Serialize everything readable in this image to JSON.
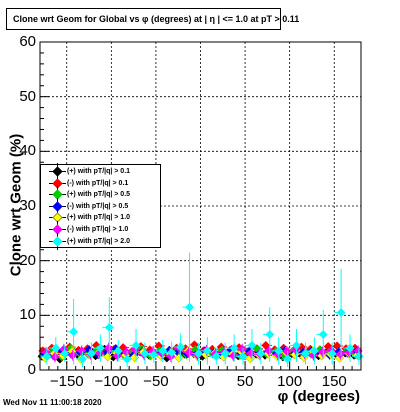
{
  "chart_data": {
    "type": "scatter",
    "title": "Clone wrt Geom for Global vs φ (degrees) at | η | <= 1.0 at pT > 0.11",
    "xlabel": "φ (degrees)",
    "ylabel": "Clone wrt Geom (%)",
    "xlim": [
      -180,
      180
    ],
    "ylim": [
      0,
      60
    ],
    "grid": true,
    "legend_position": "middle-left",
    "xticks": [
      "−150",
      "−100",
      "−50",
      "0",
      "50",
      "100",
      "150"
    ],
    "xtick_values": [
      -150,
      -100,
      -50,
      0,
      50,
      100,
      150
    ],
    "yticks": [
      "0",
      "10",
      "20",
      "30",
      "40",
      "50",
      "60"
    ],
    "ytick_values": [
      0,
      10,
      20,
      30,
      40,
      50,
      60
    ],
    "x": [
      -175,
      -165,
      -155,
      -145,
      -135,
      -125,
      -115,
      -105,
      -95,
      -85,
      -75,
      -65,
      -55,
      -45,
      -35,
      -25,
      -15,
      -5,
      5,
      15,
      25,
      35,
      45,
      55,
      65,
      75,
      85,
      95,
      105,
      115,
      125,
      135,
      145,
      155,
      165,
      175
    ],
    "series": [
      {
        "name": "(+) with pT/|q| > 0.1",
        "color": "#000000",
        "values": [
          2.5,
          3.0,
          2.0,
          3.5,
          2.8,
          3.2,
          2.6,
          3.8,
          2.4,
          3.0,
          2.9,
          3.3,
          2.7,
          3.1,
          2.2,
          3.6,
          2.9,
          3.0,
          2.5,
          3.4,
          2.8,
          3.1,
          2.6,
          3.3,
          2.9,
          2.7,
          3.5,
          2.4,
          3.0,
          2.8,
          3.2,
          2.6,
          3.4,
          2.9,
          3.1,
          2.7
        ],
        "errors": [
          0.4,
          0.4,
          0.4,
          0.4,
          0.4,
          0.4,
          0.4,
          0.4,
          0.4,
          0.4,
          0.4,
          0.4,
          0.4,
          0.4,
          0.4,
          0.4,
          0.4,
          0.4,
          0.4,
          0.4,
          0.4,
          0.4,
          0.4,
          0.4,
          0.4,
          0.4,
          0.4,
          0.4,
          0.4,
          0.4,
          0.4,
          0.4,
          0.4,
          0.4,
          0.4,
          0.4
        ]
      },
      {
        "name": "(-) with pT/|q| > 0.1",
        "color": "#ff0000",
        "values": [
          3.5,
          4.0,
          3.0,
          4.2,
          3.6,
          3.9,
          4.5,
          3.2,
          3.8,
          4.1,
          3.4,
          4.3,
          3.7,
          4.4,
          3.3,
          4.0,
          3.9,
          4.6,
          3.5,
          3.8,
          4.2,
          3.6,
          4.1,
          3.3,
          3.9,
          4.5,
          3.7,
          4.0,
          3.4,
          4.2,
          3.8,
          3.6,
          4.3,
          4.4,
          3.9,
          4.0
        ],
        "errors": [
          0.5,
          0.5,
          0.5,
          0.5,
          0.5,
          0.5,
          0.5,
          0.5,
          0.5,
          0.5,
          0.5,
          0.5,
          0.5,
          0.5,
          0.5,
          0.5,
          0.5,
          0.5,
          0.5,
          0.5,
          0.5,
          0.5,
          0.5,
          0.5,
          0.5,
          0.5,
          0.5,
          0.5,
          0.5,
          0.5,
          0.5,
          0.5,
          0.5,
          0.5,
          0.5,
          0.5
        ]
      },
      {
        "name": "(+) with pT/|q| > 0.5",
        "color": "#00cc00",
        "values": [
          2.8,
          3.3,
          2.5,
          3.9,
          3.1,
          2.9,
          3.6,
          3.0,
          3.4,
          2.7,
          3.2,
          3.8,
          2.6,
          3.5,
          3.0,
          3.3,
          2.8,
          3.7,
          3.1,
          2.9,
          3.6,
          3.2,
          2.7,
          3.4,
          3.8,
          3.0,
          3.3,
          2.6,
          3.5,
          3.1,
          2.9,
          3.7,
          3.2,
          3.0,
          3.4,
          2.8
        ],
        "errors": [
          0.8,
          0.8,
          0.8,
          0.8,
          0.8,
          0.8,
          0.8,
          0.8,
          0.8,
          0.8,
          0.8,
          0.8,
          0.8,
          0.8,
          0.8,
          0.8,
          0.8,
          0.8,
          0.8,
          0.8,
          0.8,
          0.8,
          0.8,
          0.8,
          0.8,
          0.8,
          0.8,
          0.8,
          0.8,
          0.8,
          0.8,
          0.8,
          0.8,
          0.8,
          0.8,
          0.8
        ]
      },
      {
        "name": "(-) with pT/|q| > 0.5",
        "color": "#0000ff",
        "values": [
          3.0,
          2.6,
          3.5,
          2.9,
          3.3,
          3.7,
          2.8,
          3.2,
          3.9,
          3.0,
          2.7,
          3.4,
          3.1,
          2.9,
          3.6,
          3.3,
          3.0,
          2.8,
          3.5,
          3.2,
          2.9,
          3.7,
          3.1,
          3.4,
          2.8,
          3.3,
          3.0,
          3.6,
          2.9,
          3.2,
          3.5,
          3.0,
          2.7,
          3.3,
          3.1,
          3.4
        ],
        "errors": [
          0.8,
          0.8,
          0.8,
          0.8,
          0.8,
          0.8,
          0.8,
          0.8,
          0.8,
          0.8,
          0.8,
          0.8,
          0.8,
          0.8,
          0.8,
          0.8,
          0.8,
          0.8,
          0.8,
          0.8,
          0.8,
          0.8,
          0.8,
          0.8,
          0.8,
          0.8,
          0.8,
          0.8,
          0.8,
          0.8,
          0.8,
          0.8,
          0.8,
          0.8,
          0.8,
          0.8
        ]
      },
      {
        "name": "(+) with pT/|q| > 1.0",
        "color": "#ffff00",
        "values": [
          2.2,
          3.0,
          2.6,
          3.4,
          2.0,
          2.8,
          3.2,
          2.4,
          3.1,
          2.7,
          2.3,
          3.3,
          2.9,
          2.5,
          3.0,
          2.2,
          3.5,
          2.6,
          2.8,
          3.1,
          2.4,
          2.9,
          3.3,
          2.1,
          2.7,
          3.0,
          2.5,
          3.2,
          2.8,
          2.3,
          3.4,
          2.6,
          2.9,
          2.2,
          3.1,
          2.7
        ],
        "errors": [
          1.0,
          1.0,
          1.0,
          1.0,
          1.0,
          1.0,
          1.0,
          1.0,
          1.0,
          1.0,
          1.0,
          1.0,
          1.0,
          1.0,
          1.0,
          1.0,
          1.0,
          1.0,
          1.0,
          1.0,
          1.0,
          1.0,
          1.0,
          1.0,
          1.0,
          1.0,
          1.0,
          1.0,
          1.0,
          1.0,
          1.0,
          1.0,
          1.0,
          1.0,
          1.0,
          1.0
        ]
      },
      {
        "name": "(-) with pT/|q| > 1.0",
        "color": "#ff00ff",
        "values": [
          3.2,
          2.4,
          3.8,
          2.7,
          3.5,
          2.9,
          3.1,
          4.0,
          2.6,
          3.3,
          3.7,
          2.8,
          3.4,
          3.0,
          2.5,
          3.9,
          3.2,
          2.7,
          3.6,
          3.0,
          3.3,
          2.6,
          3.8,
          3.1,
          2.9,
          3.5,
          2.8,
          3.4,
          3.7,
          3.0,
          2.7,
          3.3,
          3.6,
          2.9,
          3.2,
          3.5
        ],
        "errors": [
          1.0,
          1.0,
          1.0,
          1.0,
          1.0,
          1.0,
          1.0,
          1.0,
          1.0,
          1.0,
          1.0,
          1.0,
          1.0,
          1.0,
          1.0,
          1.0,
          1.0,
          1.0,
          1.0,
          1.0,
          1.0,
          1.0,
          1.0,
          1.0,
          1.0,
          1.0,
          1.0,
          1.0,
          1.0,
          1.0,
          1.0,
          1.0,
          1.0,
          1.0,
          1.0,
          1.0
        ]
      },
      {
        "name": "(+) with pT/|q| > 2.0",
        "color": "#00ffff",
        "values": [
          2.5,
          4.0,
          3.0,
          7.0,
          2.0,
          3.0,
          4.0,
          7.8,
          3.5,
          2.0,
          4.5,
          3.0,
          2.8,
          3.5,
          3.2,
          4.2,
          11.5,
          3.0,
          3.5,
          2.5,
          3.0,
          4.0,
          2.5,
          4.5,
          3.0,
          6.5,
          3.5,
          2.0,
          4.5,
          3.0,
          3.5,
          6.5,
          3.0,
          10.5,
          4.0,
          2.5
        ],
        "errors": [
          1.5,
          2.0,
          1.5,
          6.0,
          1.5,
          2.0,
          2.5,
          5.5,
          2.0,
          1.5,
          3.0,
          2.0,
          1.5,
          2.0,
          2.0,
          2.5,
          10.0,
          2.0,
          2.5,
          1.5,
          2.0,
          2.5,
          1.5,
          3.0,
          2.0,
          5.0,
          2.5,
          1.5,
          3.0,
          2.0,
          2.5,
          4.5,
          2.0,
          8.0,
          2.5,
          1.5
        ]
      }
    ]
  },
  "timestamp": "Wed Nov 11 11:00:18 2020"
}
